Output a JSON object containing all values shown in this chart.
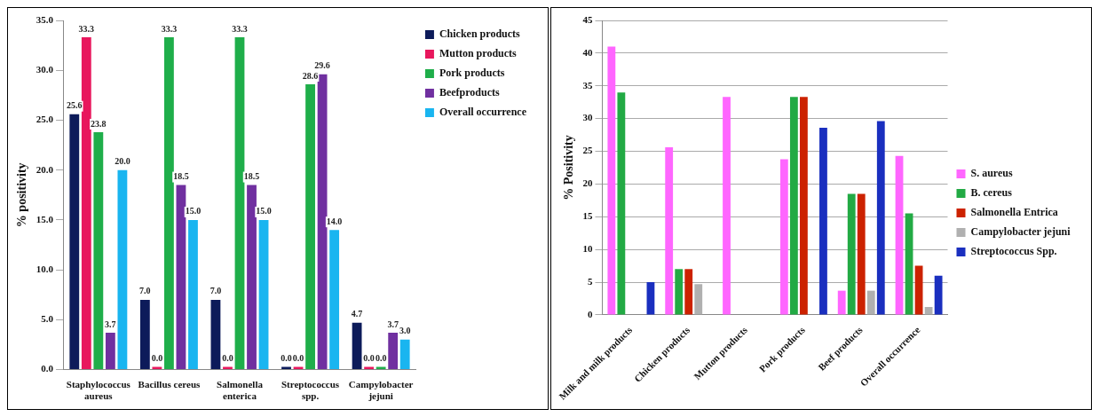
{
  "chart_data": [
    {
      "type": "bar",
      "ylabel": "% positivity",
      "categories": [
        "Staphylococcus aureus",
        "Bacillus cereus",
        "Salmonella enterica",
        "Streptococcus spp.",
        "Campylobacter jejuni"
      ],
      "series": [
        {
          "name": "Chicken products",
          "color": "#0d1b5a",
          "values": [
            25.6,
            7.0,
            7.0,
            0.0,
            4.7
          ],
          "value_labels": [
            "25.6",
            "7.0",
            "7.0",
            "0.0",
            "4.7"
          ]
        },
        {
          "name": "Mutton products",
          "color": "#e8175d",
          "values": [
            33.3,
            0.0,
            0.0,
            0.0,
            0.0
          ],
          "value_labels": [
            "33.3",
            "0.0",
            "0.0",
            "0.0",
            "0.0"
          ]
        },
        {
          "name": "Pork products",
          "color": "#1fae4a",
          "values": [
            23.8,
            33.3,
            33.3,
            28.6,
            0.0
          ],
          "value_labels": [
            "23.8",
            "33.3",
            "33.3",
            "28.6",
            "0.0"
          ]
        },
        {
          "name": "Beefproducts",
          "color": "#7030a0",
          "values": [
            3.7,
            18.5,
            18.5,
            29.6,
            3.7
          ],
          "value_labels": [
            "3.7",
            "18.5",
            "18.5",
            "29.6",
            "3.7"
          ]
        },
        {
          "name": "Overall occurrence",
          "color": "#19b5f0",
          "values": [
            20.0,
            15.0,
            15.0,
            14.0,
            3.0
          ],
          "value_labels": [
            "20.0",
            "15.0",
            "15.0",
            "14.0",
            "3.0"
          ]
        }
      ],
      "ylim": [
        0,
        35
      ],
      "yticks": [
        {
          "value": 0,
          "label": "0.0"
        },
        {
          "value": 5,
          "label": "5.0"
        },
        {
          "value": 10,
          "label": "10.0"
        },
        {
          "value": 15,
          "label": "15.0"
        },
        {
          "value": 20,
          "label": "20.0"
        },
        {
          "value": 25,
          "label": "25.0"
        },
        {
          "value": 30,
          "label": "30.0"
        },
        {
          "value": 35,
          "label": "35.0"
        }
      ],
      "grid": false,
      "legend": "top right"
    },
    {
      "type": "bar",
      "ylabel": "% Positivity",
      "categories": [
        "Milk and milk products",
        "Chicken products",
        "Mutton products",
        "Pork products",
        "Beef products",
        "Overall occurrence"
      ],
      "series": [
        {
          "name": "S. aureus",
          "color": "#ff66ff",
          "values": [
            41,
            25.6,
            33.3,
            23.8,
            3.7,
            24.3
          ]
        },
        {
          "name": "B. cereus",
          "color": "#22aa44",
          "values": [
            34,
            7,
            0,
            33.3,
            18.5,
            15.5
          ]
        },
        {
          "name": "Salmonella Entrica",
          "color": "#cc2200",
          "values": [
            0,
            7,
            0,
            33.3,
            18.5,
            7.5
          ]
        },
        {
          "name": "Campylobacter jejuni",
          "color": "#b0b0b0",
          "values": [
            0,
            4.7,
            0,
            0,
            3.7,
            1.2
          ]
        },
        {
          "name": "Streptococcus Spp.",
          "color": "#1a2fbf",
          "values": [
            5,
            0,
            0,
            28.6,
            29.6,
            6
          ]
        }
      ],
      "ylim": [
        0,
        45
      ],
      "yticks": [
        0,
        5,
        10,
        15,
        20,
        25,
        30,
        35,
        40,
        45
      ],
      "grid": "y",
      "legend": "right"
    }
  ]
}
